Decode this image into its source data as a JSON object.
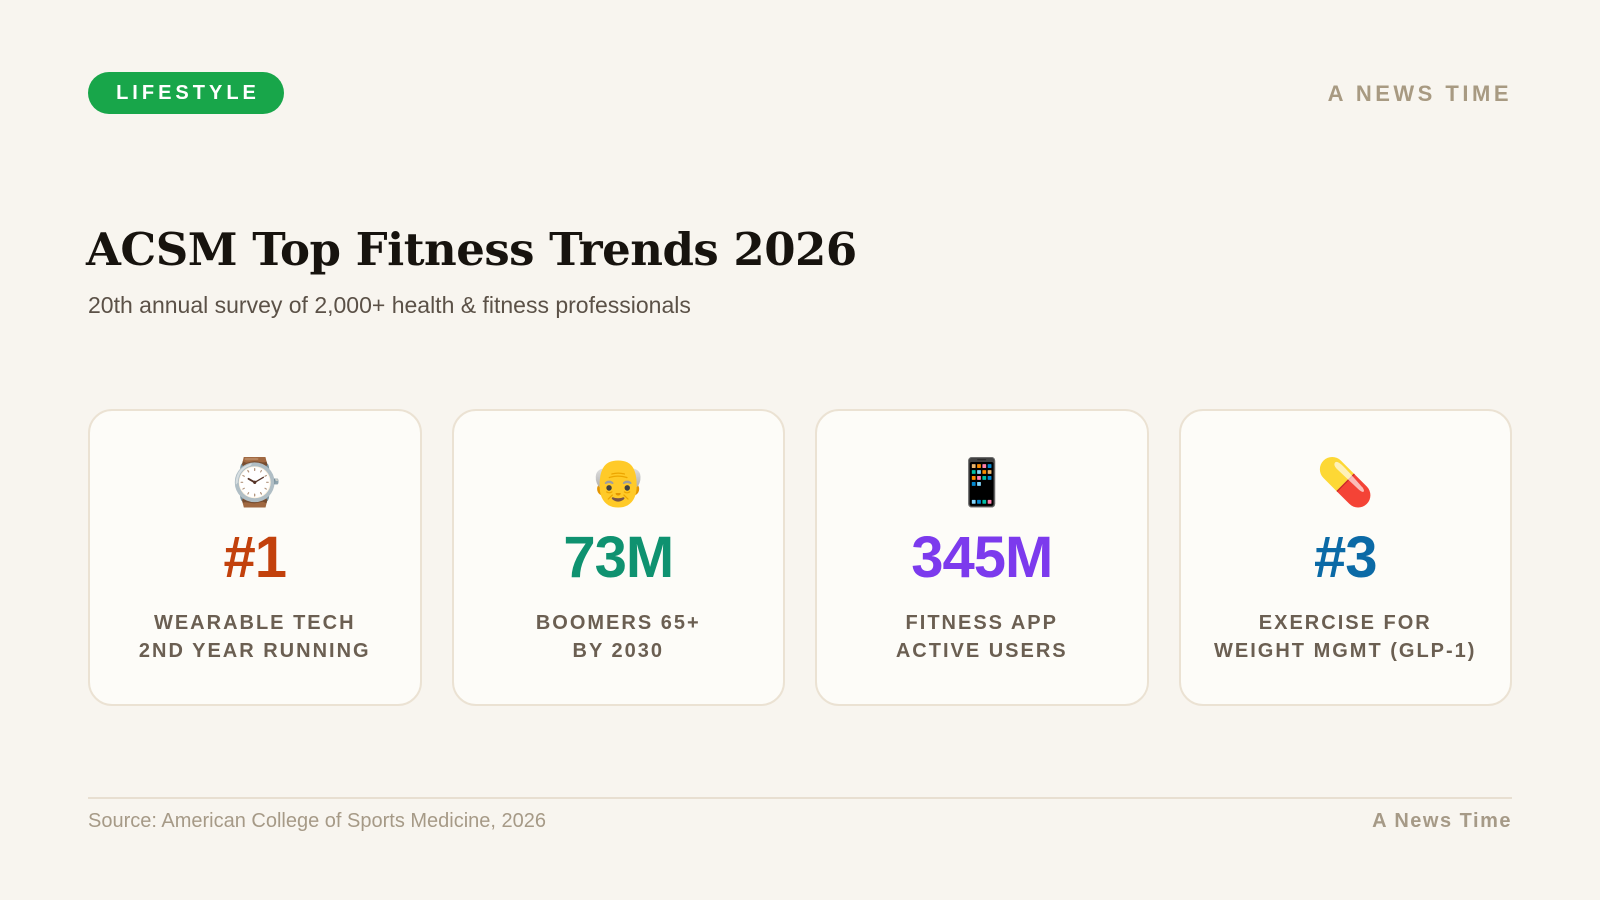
{
  "header": {
    "category": "LIFESTYLE",
    "brand": "A NEWS TIME"
  },
  "main": {
    "title": "ACSM Top Fitness Trends 2026",
    "subtitle": "20th annual survey of 2,000+ health & fitness professionals"
  },
  "cards": [
    {
      "icon": "watch-icon",
      "emoji": "⌚",
      "stat": "#1",
      "color": "#c2410c",
      "label_line1": "WEARABLE TECH",
      "label_line2": "2ND YEAR RUNNING"
    },
    {
      "icon": "older-man-icon",
      "emoji": "👴",
      "stat": "73M",
      "color": "#0f9270",
      "label_line1": "BOOMERS 65+",
      "label_line2": "BY 2030"
    },
    {
      "icon": "mobile-phone-icon",
      "emoji": "📱",
      "stat": "345M",
      "color": "#7c3aed",
      "label_line1": "FITNESS APP",
      "label_line2": "ACTIVE USERS"
    },
    {
      "icon": "pill-icon",
      "emoji": "💊",
      "stat": "#3",
      "color": "#0b6aa6",
      "label_line1": "EXERCISE FOR",
      "label_line2": "WEIGHT MGMT (GLP-1)"
    }
  ],
  "footer": {
    "source": "Source: American College of Sports Medicine, 2026",
    "brand": "A News Time"
  },
  "colors": {
    "background": "#f8f5ef",
    "pill": "#18a64a",
    "muted": "#a69a87"
  }
}
